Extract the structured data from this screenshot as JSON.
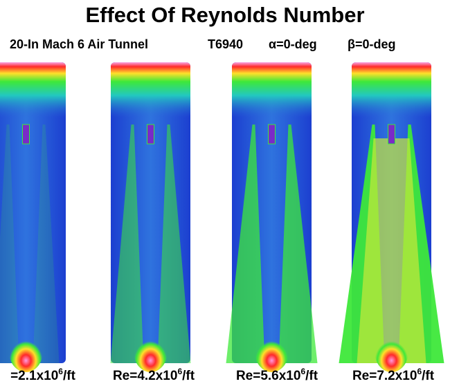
{
  "header": {
    "title": "Effect Of Reynolds Number",
    "subtitle": [
      "20-In Mach 6 Air Tunnel",
      "T6940",
      "α=0-deg",
      "β=0-deg"
    ]
  },
  "panels": [
    {
      "label": {
        "prefix": "=2.1x10",
        "sup": "6",
        "suffix": "/ft"
      }
    },
    {
      "label": {
        "prefix": "Re=4.2x10",
        "sup": "6",
        "suffix": "/ft"
      }
    },
    {
      "label": {
        "prefix": "Re=5.6x10",
        "sup": "6",
        "suffix": "/ft"
      }
    },
    {
      "label": {
        "prefix": "Re=7.2x10",
        "sup": "6",
        "suffix": "/ft"
      }
    }
  ]
}
